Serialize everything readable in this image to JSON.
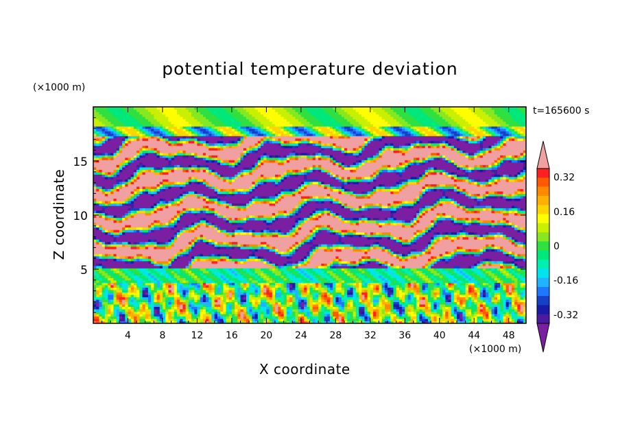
{
  "chart_data": {
    "type": "heatmap",
    "title": "potential temperature deviation",
    "xlabel": "X coordinate",
    "ylabel": "Z coordinate",
    "x_unit": "(×1000 m)",
    "z_unit": "(×1000 m)",
    "time_label": "t=165600 s",
    "xlim": [
      0,
      50
    ],
    "zlim": [
      0,
      20
    ],
    "x_ticks": [
      4,
      8,
      12,
      16,
      20,
      24,
      28,
      32,
      36,
      40,
      44,
      48
    ],
    "x_tick_labels": [
      "4",
      "8",
      "12",
      "16",
      "20",
      "24",
      "28",
      "32",
      "36",
      "40",
      "44",
      "48"
    ],
    "z_ticks": [
      5,
      10,
      15
    ],
    "z_tick_labels": [
      "5",
      "10",
      "15"
    ],
    "colorbar": {
      "levels": [
        -0.4,
        -0.36,
        -0.32,
        -0.28,
        -0.24,
        -0.2,
        -0.16,
        -0.12,
        -0.08,
        -0.04,
        0,
        0.04,
        0.08,
        0.12,
        0.16,
        0.2,
        0.24,
        0.28,
        0.32,
        0.36,
        0.4
      ],
      "colors": [
        "#7a1fa2",
        "#4a1aa0",
        "#1a1aa8",
        "#1540c8",
        "#1e78ff",
        "#20b4ff",
        "#00e4f0",
        "#00f0b0",
        "#00e87a",
        "#30e040",
        "#88e820",
        "#c8f000",
        "#ffff00",
        "#ffd400",
        "#ffb000",
        "#ff8a00",
        "#ff5a00",
        "#ff2020",
        "#f0a0a0"
      ],
      "labels": [
        "0.32",
        "0.16",
        "0",
        "-0.16",
        "-0.32"
      ],
      "label_values": [
        0.32,
        0.16,
        0,
        -0.16,
        -0.32
      ]
    }
  }
}
